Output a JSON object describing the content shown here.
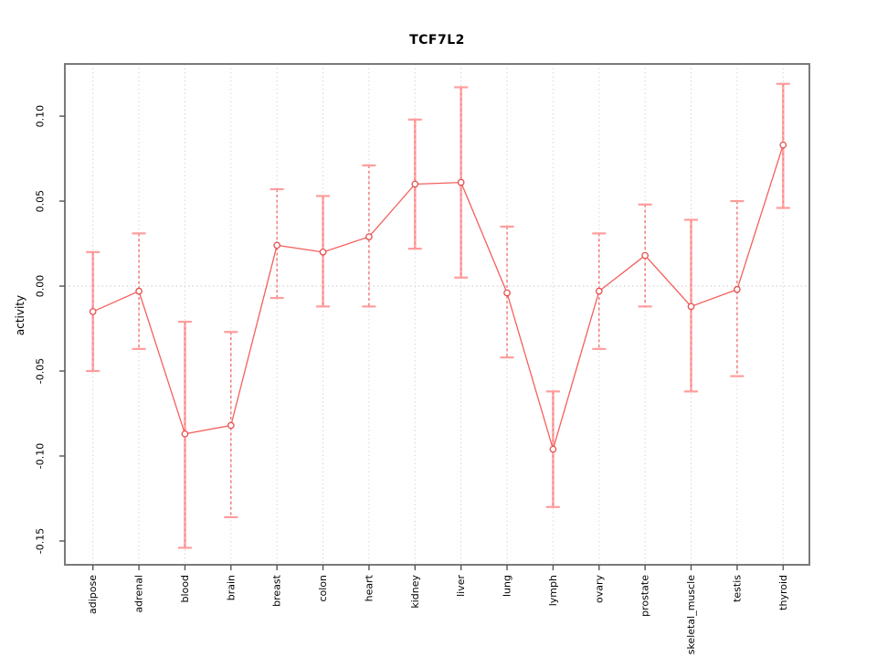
{
  "chart_data": {
    "type": "line",
    "title": "TCF7L2",
    "xlabel": "",
    "ylabel": "activity",
    "legend": "none",
    "grid": "vertical dotted gridlines at each category plus dotted horizontal line at y=0",
    "categories": [
      "adipose",
      "adrenal",
      "blood",
      "brain",
      "breast",
      "colon",
      "heart",
      "kidney",
      "liver",
      "lung",
      "lymph",
      "ovary",
      "prostate",
      "skeletal_muscle",
      "testis",
      "thyroid"
    ],
    "series": [
      {
        "name": "activity",
        "values": [
          -0.015,
          -0.003,
          -0.087,
          -0.082,
          0.024,
          0.02,
          0.029,
          0.06,
          0.061,
          -0.004,
          -0.096,
          -0.003,
          0.018,
          -0.012,
          -0.002,
          0.083
        ],
        "error_low": [
          -0.05,
          -0.037,
          -0.154,
          -0.136,
          -0.007,
          -0.012,
          -0.012,
          0.022,
          0.005,
          -0.042,
          -0.13,
          -0.037,
          -0.012,
          -0.062,
          -0.053,
          0.046
        ],
        "error_high": [
          0.02,
          0.031,
          -0.021,
          -0.027,
          0.057,
          0.053,
          0.071,
          0.098,
          0.117,
          0.035,
          -0.062,
          0.031,
          0.048,
          0.039,
          0.05,
          0.119
        ]
      }
    ],
    "error_bar_styles": [
      "solid",
      "dashed",
      "solid",
      "dashed",
      "dashed",
      "solid",
      "dashed",
      "solid",
      "solid",
      "dashed",
      "solid",
      "dashed",
      "dashed",
      "solid",
      "dashed",
      "solid"
    ],
    "y_tick_labels": [
      "-0.15",
      "-0.10",
      "-0.05",
      "0.00",
      "0.05",
      "0.10"
    ],
    "y_ticks": [
      -0.15,
      -0.1,
      -0.05,
      0.0,
      0.05,
      0.1
    ],
    "ylim": [
      -0.164,
      0.1307
    ],
    "colors": {
      "line": "#f4605c",
      "marker_stroke": "#e4504e",
      "marker_fill": "#ffffff",
      "error_bar_solid": "#ffa8a8",
      "error_bar_dashed": "#f25b5b",
      "error_cap": "#ff9c9c",
      "gridline": "#d8d8d8",
      "zero_line": "#c8c8c8",
      "box_border": "#7a7a7a",
      "tick": "#555555",
      "text": "#000000"
    }
  }
}
